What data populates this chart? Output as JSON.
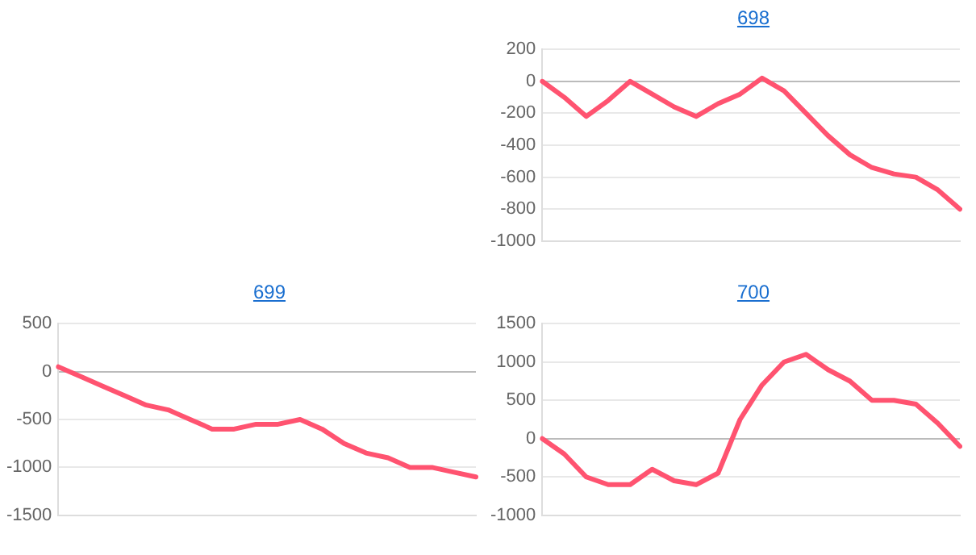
{
  "chart_data": [
    {
      "type": "line",
      "title": "698",
      "categories": [
        null,
        null,
        null,
        null,
        null,
        null,
        null,
        null,
        null,
        null,
        null,
        null,
        null,
        null,
        null,
        null,
        null,
        null,
        null,
        null
      ],
      "series": [
        {
          "color": "#ff5370",
          "values": [
            0,
            -100,
            -220,
            -120,
            0,
            -80,
            -160,
            -220,
            -140,
            -80,
            20,
            -60,
            -200,
            -340,
            -460,
            -540,
            -580,
            -600,
            -680,
            -800
          ]
        }
      ],
      "ylim": [
        -1000,
        200
      ],
      "yticks": [
        -1000,
        -800,
        -600,
        -400,
        -200,
        0,
        200
      ],
      "grid": "y",
      "tick_labels": "y",
      "marker": "none",
      "line_style": "solid",
      "legend": false
    },
    {
      "type": "line",
      "title": "699",
      "categories": [
        null,
        null,
        null,
        null,
        null,
        null,
        null,
        null,
        null,
        null,
        null,
        null,
        null,
        null,
        null,
        null,
        null,
        null,
        null,
        null
      ],
      "series": [
        {
          "color": "#ff5370",
          "values": [
            50,
            -50,
            -150,
            -250,
            -350,
            -400,
            -500,
            -600,
            -600,
            -550,
            -550,
            -500,
            -600,
            -750,
            -850,
            -900,
            -1000,
            -1000,
            -1050,
            -1100
          ]
        }
      ],
      "ylim": [
        -1500,
        500
      ],
      "yticks": [
        -1500,
        -1000,
        -500,
        0,
        500
      ],
      "grid": "y",
      "tick_labels": "y",
      "marker": "none",
      "line_style": "solid",
      "legend": false
    },
    {
      "type": "line",
      "title": "700",
      "categories": [
        null,
        null,
        null,
        null,
        null,
        null,
        null,
        null,
        null,
        null,
        null,
        null,
        null,
        null,
        null,
        null,
        null,
        null,
        null,
        null
      ],
      "series": [
        {
          "color": "#ff5370",
          "values": [
            0,
            -200,
            -500,
            -600,
            -600,
            -400,
            -550,
            -600,
            -450,
            250,
            700,
            1000,
            1100,
            900,
            750,
            500,
            500,
            450,
            200,
            -100
          ]
        }
      ],
      "ylim": [
        -1000,
        1500
      ],
      "yticks": [
        -1000,
        -500,
        0,
        500,
        1000,
        1500
      ],
      "grid": "y",
      "tick_labels": "y",
      "marker": "none",
      "line_style": "solid",
      "legend": false
    }
  ]
}
